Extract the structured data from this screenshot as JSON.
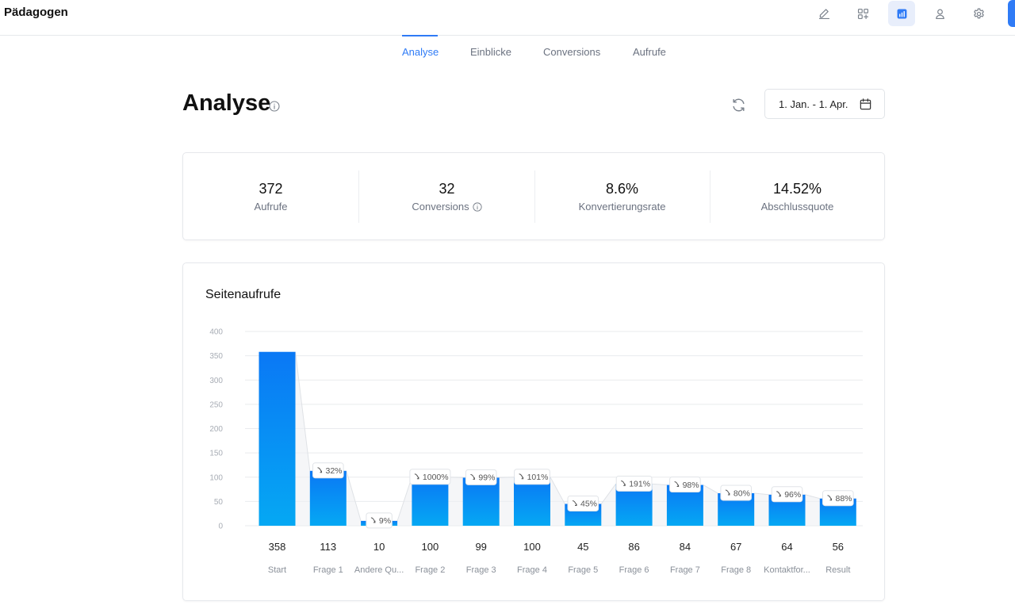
{
  "app": {
    "title": "Pädagogen"
  },
  "toolbar": {
    "icons": [
      {
        "name": "edit-icon",
        "active": false
      },
      {
        "name": "apps-add-icon",
        "active": false
      },
      {
        "name": "analytics-icon",
        "active": true
      },
      {
        "name": "user-icon",
        "active": false
      },
      {
        "name": "settings-icon",
        "active": false
      }
    ]
  },
  "tabs": [
    {
      "label": "Analyse",
      "active": true
    },
    {
      "label": "Einblicke",
      "active": false
    },
    {
      "label": "Conversions",
      "active": false
    },
    {
      "label": "Aufrufe",
      "active": false
    }
  ],
  "header": {
    "title": "Analyse",
    "date_range": "1. Jan. - 1. Apr."
  },
  "stats": [
    {
      "value": "372",
      "label": "Aufrufe",
      "info": false
    },
    {
      "value": "32",
      "label": "Conversions",
      "info": true
    },
    {
      "value": "8.6%",
      "label": "Konvertierungsrate",
      "info": false
    },
    {
      "value": "14.52%",
      "label": "Abschlussquote",
      "info": false
    }
  ],
  "chart": {
    "title": "Seitenaufrufe"
  },
  "colors": {
    "accent": "#2f7bf6",
    "bar_top": "#0a78f5",
    "bar_bottom": "#05a8f3",
    "muted_text": "#6b7280",
    "grid": "#e9ebee"
  },
  "chart_data": {
    "type": "bar",
    "title": "Seitenaufrufe",
    "categories": [
      "Start",
      "Frage 1",
      "Andere Qu...",
      "Frage 2",
      "Frage 3",
      "Frage 4",
      "Frage 5",
      "Frage 6",
      "Frage 7",
      "Frage 8",
      "Kontaktfor...",
      "Result"
    ],
    "values": [
      358,
      113,
      10,
      100,
      99,
      100,
      45,
      86,
      84,
      67,
      64,
      56
    ],
    "value_labels": [
      "358",
      "113",
      "10",
      "100",
      "99",
      "100",
      "45",
      "86",
      "84",
      "67",
      "64",
      "56"
    ],
    "drop_badges": [
      null,
      "32%",
      "9%",
      "1000%",
      "99%",
      "101%",
      "45%",
      "191%",
      "98%",
      "80%",
      "96%",
      "88%"
    ],
    "yticks": [
      0,
      50,
      100,
      150,
      200,
      250,
      300,
      350,
      400
    ],
    "ylim": [
      0,
      400
    ],
    "grid": true,
    "legend": "none"
  }
}
